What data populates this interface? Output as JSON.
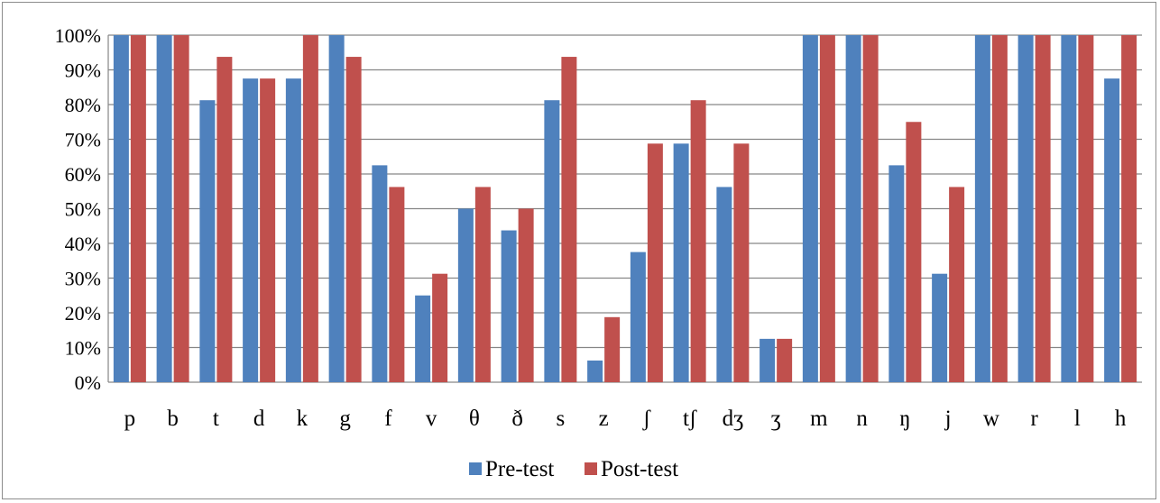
{
  "chart_data": {
    "type": "bar",
    "categories": [
      "p",
      "b",
      "t",
      "d",
      "k",
      "g",
      "f",
      "v",
      "θ",
      "ð",
      "s",
      "z",
      "ʃ",
      "tʃ",
      "dʒ",
      "ʒ",
      "m",
      "n",
      "ŋ",
      "j",
      "w",
      "r",
      "l",
      "h"
    ],
    "series": [
      {
        "name": "Pre-test",
        "color": "#4f81bd",
        "values": [
          100,
          100,
          81.25,
          87.5,
          87.5,
          100,
          62.5,
          25,
          50,
          43.75,
          81.25,
          6.25,
          37.5,
          68.75,
          56.25,
          12.5,
          100,
          100,
          62.5,
          31.25,
          100,
          100,
          100,
          87.5
        ]
      },
      {
        "name": "Post-test",
        "color": "#c0504d",
        "values": [
          100,
          100,
          93.75,
          87.5,
          100,
          93.75,
          56.25,
          31.25,
          56.25,
          50,
          93.75,
          18.75,
          68.75,
          81.25,
          68.75,
          12.5,
          100,
          100,
          75,
          56.25,
          100,
          100,
          100,
          100
        ]
      }
    ],
    "yticks": [
      "0%",
      "10%",
      "20%",
      "30%",
      "40%",
      "50%",
      "60%",
      "70%",
      "80%",
      "90%",
      "100%"
    ],
    "ylim": [
      0,
      100
    ],
    "grid": true,
    "legend_position": "bottom"
  }
}
